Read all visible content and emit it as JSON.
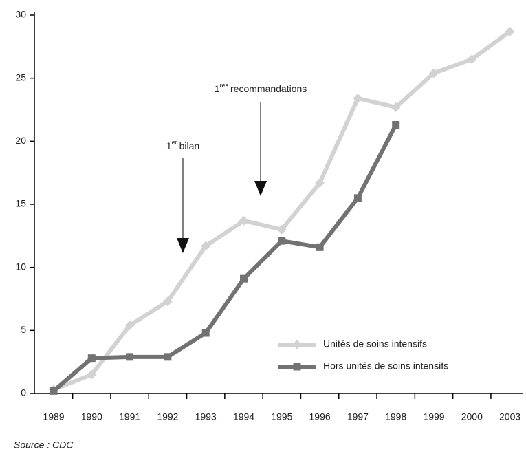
{
  "chart_data": {
    "type": "line",
    "categories": [
      "1989",
      "1990",
      "1991",
      "1992",
      "1993",
      "1994",
      "1995",
      "1996",
      "1997",
      "1998",
      "1999",
      "2000",
      "2003"
    ],
    "series": [
      {
        "name": "Unités de soins intensifs",
        "color": "#d2d2d2",
        "marker": "diamond",
        "values": [
          0.3,
          1.5,
          5.4,
          7.3,
          11.7,
          13.7,
          13.0,
          16.7,
          23.4,
          22.7,
          25.4,
          26.5,
          28.7
        ]
      },
      {
        "name": "Hors unités de soins intensifs",
        "color": "#727272",
        "marker": "square",
        "values": [
          0.2,
          2.8,
          2.9,
          2.9,
          4.8,
          9.1,
          12.1,
          11.6,
          15.5,
          21.3,
          null,
          null,
          null
        ]
      }
    ],
    "ylim": [
      0,
      30
    ],
    "yticks": [
      0,
      5,
      10,
      15,
      20,
      25,
      30
    ],
    "annotations": [
      {
        "parts": [
          "1",
          "er",
          "bilan"
        ]
      },
      {
        "parts": [
          "1",
          "res",
          "recommandations"
        ]
      }
    ],
    "legend": "lower right",
    "source": "Source : CDC"
  }
}
